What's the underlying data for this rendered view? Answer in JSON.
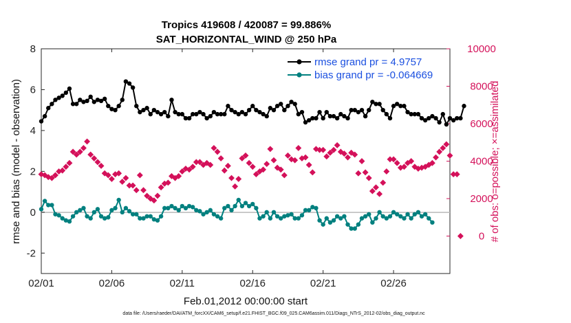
{
  "chart_data": {
    "type": "line",
    "title_line1": "Tropics 419608 / 420087 = 99.886%",
    "title_line2": "SAT_HORIZONTAL_WIND @ 250 hPa",
    "xlabel": "Feb.01,2012 00:00:00 start",
    "ylabel_left": "rmse and bias (model - observation)",
    "ylabel_right": "# of obs: o=possible; ×=assimilated",
    "footnote": "data file: /Users/raeder/DAI/ATM_forcXX/CAM6_setup/f.e21.FHIST_BGC.f09_025.CAM6assim.011/Diags_NTrS_2012-02/obs_diag_output.nc",
    "xlim": [
      1,
      30
    ],
    "ylim_left": [
      -3,
      8
    ],
    "ylim_right": [
      -2000,
      10000
    ],
    "x_ticks": [
      1,
      6,
      11,
      16,
      21,
      26
    ],
    "x_tick_labels": [
      "02/01",
      "02/06",
      "02/11",
      "02/16",
      "02/21",
      "02/26"
    ],
    "y_ticks_left": [
      "-2",
      "0",
      "2",
      "4",
      "6",
      "8"
    ],
    "y_ticks_right": [
      "0",
      "2000",
      "4000",
      "6000",
      "8000",
      "10000"
    ],
    "x_start": 1.0,
    "x_step": 0.25,
    "series": [
      {
        "name": "rmse grand pr = 4.9757",
        "axis": "left",
        "color": "#000000",
        "values": [
          4.45,
          4.7,
          5.1,
          5.3,
          5.5,
          5.6,
          5.7,
          5.85,
          6.05,
          5.3,
          5.3,
          5.5,
          5.4,
          5.45,
          5.65,
          5.4,
          5.5,
          5.45,
          5.55,
          5.2,
          5.05,
          5.0,
          5.2,
          5.5,
          6.4,
          6.3,
          6.1,
          5.2,
          4.9,
          5.0,
          5.1,
          4.8,
          5.0,
          4.9,
          4.8,
          4.9,
          4.7,
          5.5,
          4.9,
          4.8,
          4.8,
          4.6,
          4.6,
          4.8,
          4.8,
          4.9,
          4.8,
          4.6,
          4.7,
          4.9,
          4.8,
          4.8,
          4.8,
          5.2,
          5.0,
          4.9,
          4.8,
          4.9,
          4.8,
          5.0,
          5.2,
          5.0,
          4.9,
          4.8,
          4.7,
          5.1,
          5.0,
          5.2,
          5.3,
          5.0,
          5.2,
          5.4,
          5.3,
          4.8,
          4.9,
          4.4,
          4.5,
          4.6,
          4.6,
          4.9,
          4.6,
          4.9,
          4.7,
          4.7,
          4.6,
          4.8,
          4.7,
          4.6,
          5.0,
          5.0,
          4.9,
          5.0,
          4.7,
          5.0,
          5.4,
          5.3,
          5.3,
          5.0,
          4.8,
          4.6,
          5.2,
          5.3,
          5.2,
          5.2,
          4.9,
          4.8,
          4.8,
          4.8,
          4.6,
          4.5,
          4.6,
          4.7,
          4.6,
          4.4,
          4.8,
          4.3,
          4.6,
          4.5,
          4.6,
          4.6,
          5.2
        ],
        "label": "rmse grand pr = 4.9757"
      },
      {
        "name": "bias grand pr = -0.064669",
        "axis": "left",
        "color": "#00807f",
        "values": [
          0.15,
          0.55,
          0.35,
          0.35,
          -0.1,
          -0.15,
          -0.3,
          -0.4,
          -0.45,
          -0.2,
          0.0,
          0.1,
          0.2,
          -0.2,
          -0.3,
          0.0,
          0.15,
          -0.2,
          -0.3,
          -0.25,
          0.1,
          0.2,
          0.6,
          0.0,
          0.2,
          0.05,
          -0.1,
          -0.1,
          -0.3,
          -0.3,
          -0.2,
          -0.2,
          -0.35,
          -0.4,
          -0.2,
          0.2,
          0.2,
          0.3,
          0.2,
          0.1,
          0.3,
          0.2,
          0.3,
          0.25,
          0.1,
          0.05,
          -0.1,
          0.0,
          0.1,
          -0.1,
          -0.2,
          -0.3,
          0.2,
          0.3,
          0.1,
          0.3,
          0.6,
          0.3,
          0.45,
          0.3,
          0.4,
          0.2,
          -0.3,
          -0.2,
          0.0,
          -0.3,
          0.0,
          -0.2,
          -0.3,
          -0.2,
          -0.15,
          -0.1,
          -0.3,
          -0.3,
          -0.15,
          0.1,
          0.1,
          0.25,
          0.2,
          -0.4,
          -0.6,
          -0.3,
          -0.5,
          -0.4,
          -0.2,
          -0.3,
          -0.2,
          -0.6,
          -0.8,
          -0.8,
          -0.6,
          -0.3,
          -0.2,
          -0.1,
          -0.5,
          -0.3,
          0.0,
          -0.2,
          -0.3,
          -0.2,
          0.0,
          -0.1,
          -0.2,
          -0.3,
          -0.1,
          -0.3,
          -0.1,
          0.0,
          -0.2,
          -0.1,
          -0.3,
          -0.5
        ],
        "label": "bias grand pr = -0.064669"
      },
      {
        "name": "# of obs assimilated",
        "axis": "right",
        "color": "#d4115a",
        "values": [
          3300,
          3250,
          3150,
          3100,
          3250,
          3450,
          3500,
          3700,
          3900,
          4500,
          4350,
          4500,
          4700,
          5050,
          4350,
          4150,
          3950,
          3750,
          3350,
          3250,
          3050,
          3300,
          3350,
          2900,
          3100,
          2700,
          2700,
          2450,
          3250,
          2450,
          2150,
          2000,
          1900,
          2150,
          2600,
          2800,
          2850,
          3200,
          3100,
          3200,
          3450,
          3600,
          3550,
          3700,
          3950,
          3950,
          3800,
          3900,
          3800,
          4700,
          4500,
          4150,
          3500,
          3750,
          3100,
          2650,
          3050,
          4150,
          4300,
          3900,
          3700,
          3300,
          3450,
          3550,
          3850,
          4650,
          4050,
          3650,
          3550,
          3250,
          4300,
          4100,
          4050,
          4700,
          4150,
          4200,
          3800,
          3400,
          4650,
          4600,
          4600,
          4250,
          4450,
          4600,
          4850,
          4500,
          4400,
          4200,
          4450,
          4350,
          3350,
          4000,
          3400,
          3100,
          2400,
          2600,
          2250,
          2850,
          3450,
          4100,
          4100,
          3900,
          3650,
          3700,
          3900,
          4000,
          3700,
          3600,
          3650,
          3700,
          3800,
          3900,
          4200,
          4500,
          4700,
          4900,
          4300,
          3300,
          3300,
          0
        ]
      }
    ]
  }
}
